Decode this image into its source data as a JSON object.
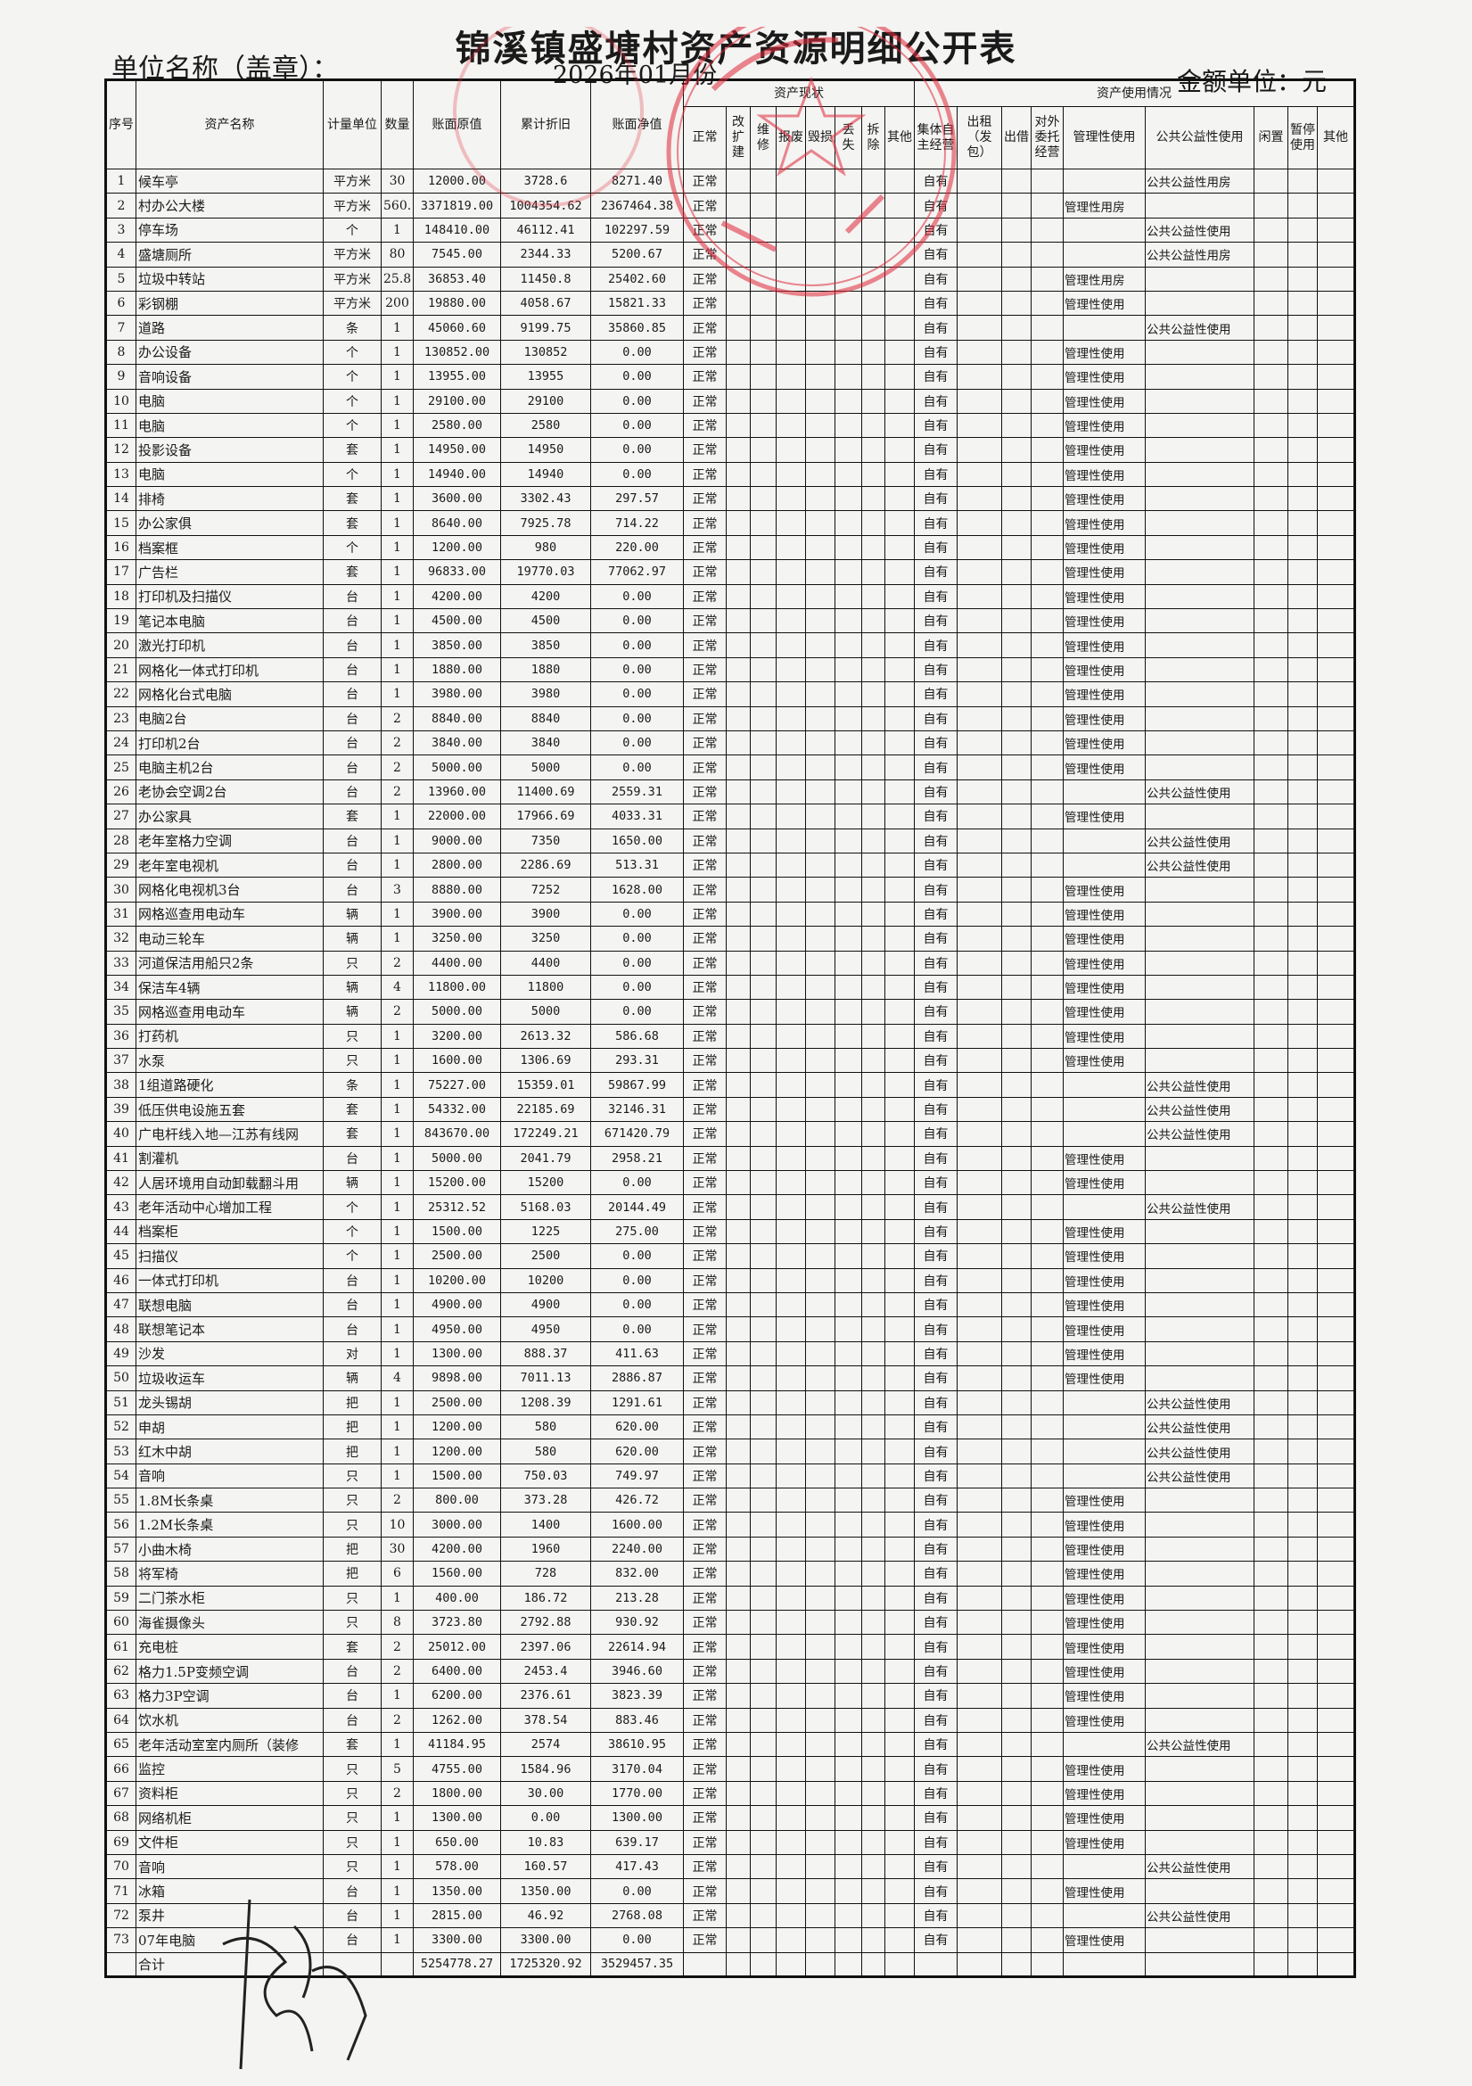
{
  "title": "锦溪镇盛塘村资产资源明细公开表",
  "unit_label": "单位名称（盖章）：",
  "period": "2026年01月份",
  "currency_label": "金额单位：元",
  "colors": {
    "stamp": "#e0283a",
    "ink": "#111111"
  },
  "headers": {
    "no": "序号",
    "name": "资产名称",
    "unit": "计量单位",
    "qty": "数量",
    "original": "账面原值",
    "depreciation": "累计折旧",
    "net": "账面净值",
    "status_group": "资产现状",
    "status": [
      "正常",
      "改扩建",
      "维修",
      "报废",
      "毁损",
      "丢失",
      "拆除",
      "其他"
    ],
    "usage_group": "资产使用情况",
    "usage": [
      "集体自主经营",
      "出租（发包）",
      "出借",
      "对外委托经营",
      "管理性使用",
      "公共公益性使用",
      "闲置",
      "暂停使用",
      "其他"
    ]
  },
  "rows": [
    [
      "1",
      "候车亭",
      "平方米",
      "30",
      "12000.00",
      "3728.6",
      "8271.40",
      "正常",
      "自有",
      "",
      "公共公益性用房"
    ],
    [
      "2",
      "村办公大楼",
      "平方米",
      "560.",
      "3371819.00",
      "1004354.62",
      "2367464.38",
      "正常",
      "自有",
      "管理性用房",
      ""
    ],
    [
      "3",
      "停车场",
      "个",
      "1",
      "148410.00",
      "46112.41",
      "102297.59",
      "正常",
      "自有",
      "",
      "公共公益性使用"
    ],
    [
      "4",
      "盛塘厕所",
      "平方米",
      "80",
      "7545.00",
      "2344.33",
      "5200.67",
      "正常",
      "自有",
      "",
      "公共公益性用房"
    ],
    [
      "5",
      "垃圾中转站",
      "平方米",
      "25.8",
      "36853.40",
      "11450.8",
      "25402.60",
      "正常",
      "自有",
      "管理性用房",
      ""
    ],
    [
      "6",
      "彩钢棚",
      "平方米",
      "200",
      "19880.00",
      "4058.67",
      "15821.33",
      "正常",
      "自有",
      "管理性使用",
      ""
    ],
    [
      "7",
      "道路",
      "条",
      "1",
      "45060.60",
      "9199.75",
      "35860.85",
      "正常",
      "自有",
      "",
      "公共公益性使用"
    ],
    [
      "8",
      "办公设备",
      "个",
      "1",
      "130852.00",
      "130852",
      "0.00",
      "正常",
      "自有",
      "管理性使用",
      ""
    ],
    [
      "9",
      "音响设备",
      "个",
      "1",
      "13955.00",
      "13955",
      "0.00",
      "正常",
      "自有",
      "管理性使用",
      ""
    ],
    [
      "10",
      "电脑",
      "个",
      "1",
      "29100.00",
      "29100",
      "0.00",
      "正常",
      "自有",
      "管理性使用",
      ""
    ],
    [
      "11",
      "电脑",
      "个",
      "1",
      "2580.00",
      "2580",
      "0.00",
      "正常",
      "自有",
      "管理性使用",
      ""
    ],
    [
      "12",
      "投影设备",
      "套",
      "1",
      "14950.00",
      "14950",
      "0.00",
      "正常",
      "自有",
      "管理性使用",
      ""
    ],
    [
      "13",
      "电脑",
      "个",
      "1",
      "14940.00",
      "14940",
      "0.00",
      "正常",
      "自有",
      "管理性使用",
      ""
    ],
    [
      "14",
      "排椅",
      "套",
      "1",
      "3600.00",
      "3302.43",
      "297.57",
      "正常",
      "自有",
      "管理性使用",
      ""
    ],
    [
      "15",
      "办公家俱",
      "套",
      "1",
      "8640.00",
      "7925.78",
      "714.22",
      "正常",
      "自有",
      "管理性使用",
      ""
    ],
    [
      "16",
      "档案框",
      "个",
      "1",
      "1200.00",
      "980",
      "220.00",
      "正常",
      "自有",
      "管理性使用",
      ""
    ],
    [
      "17",
      "广告栏",
      "套",
      "1",
      "96833.00",
      "19770.03",
      "77062.97",
      "正常",
      "自有",
      "管理性使用",
      ""
    ],
    [
      "18",
      "打印机及扫描仪",
      "台",
      "1",
      "4200.00",
      "4200",
      "0.00",
      "正常",
      "自有",
      "管理性使用",
      ""
    ],
    [
      "19",
      "笔记本电脑",
      "台",
      "1",
      "4500.00",
      "4500",
      "0.00",
      "正常",
      "自有",
      "管理性使用",
      ""
    ],
    [
      "20",
      "激光打印机",
      "台",
      "1",
      "3850.00",
      "3850",
      "0.00",
      "正常",
      "自有",
      "管理性使用",
      ""
    ],
    [
      "21",
      "网格化一体式打印机",
      "台",
      "1",
      "1880.00",
      "1880",
      "0.00",
      "正常",
      "自有",
      "管理性使用",
      ""
    ],
    [
      "22",
      "网格化台式电脑",
      "台",
      "1",
      "3980.00",
      "3980",
      "0.00",
      "正常",
      "自有",
      "管理性使用",
      ""
    ],
    [
      "23",
      "电脑2台",
      "台",
      "2",
      "8840.00",
      "8840",
      "0.00",
      "正常",
      "自有",
      "管理性使用",
      ""
    ],
    [
      "24",
      "打印机2台",
      "台",
      "2",
      "3840.00",
      "3840",
      "0.00",
      "正常",
      "自有",
      "管理性使用",
      ""
    ],
    [
      "25",
      "电脑主机2台",
      "台",
      "2",
      "5000.00",
      "5000",
      "0.00",
      "正常",
      "自有",
      "管理性使用",
      ""
    ],
    [
      "26",
      "老协会空调2台",
      "台",
      "2",
      "13960.00",
      "11400.69",
      "2559.31",
      "正常",
      "自有",
      "",
      "公共公益性使用"
    ],
    [
      "27",
      "办公家具",
      "套",
      "1",
      "22000.00",
      "17966.69",
      "4033.31",
      "正常",
      "自有",
      "管理性使用",
      ""
    ],
    [
      "28",
      "老年室格力空调",
      "台",
      "1",
      "9000.00",
      "7350",
      "1650.00",
      "正常",
      "自有",
      "",
      "公共公益性使用"
    ],
    [
      "29",
      "老年室电视机",
      "台",
      "1",
      "2800.00",
      "2286.69",
      "513.31",
      "正常",
      "自有",
      "",
      "公共公益性使用"
    ],
    [
      "30",
      "网格化电视机3台",
      "台",
      "3",
      "8880.00",
      "7252",
      "1628.00",
      "正常",
      "自有",
      "管理性使用",
      ""
    ],
    [
      "31",
      "网格巡查用电动车",
      "辆",
      "1",
      "3900.00",
      "3900",
      "0.00",
      "正常",
      "自有",
      "管理性使用",
      ""
    ],
    [
      "32",
      "电动三轮车",
      "辆",
      "1",
      "3250.00",
      "3250",
      "0.00",
      "正常",
      "自有",
      "管理性使用",
      ""
    ],
    [
      "33",
      "河道保洁用船只2条",
      "只",
      "2",
      "4400.00",
      "4400",
      "0.00",
      "正常",
      "自有",
      "管理性使用",
      ""
    ],
    [
      "34",
      "保洁车4辆",
      "辆",
      "4",
      "11800.00",
      "11800",
      "0.00",
      "正常",
      "自有",
      "管理性使用",
      ""
    ],
    [
      "35",
      "网格巡查用电动车",
      "辆",
      "2",
      "5000.00",
      "5000",
      "0.00",
      "正常",
      "自有",
      "管理性使用",
      ""
    ],
    [
      "36",
      "打药机",
      "只",
      "1",
      "3200.00",
      "2613.32",
      "586.68",
      "正常",
      "自有",
      "管理性使用",
      ""
    ],
    [
      "37",
      "水泵",
      "只",
      "1",
      "1600.00",
      "1306.69",
      "293.31",
      "正常",
      "自有",
      "管理性使用",
      ""
    ],
    [
      "38",
      "1组道路硬化",
      "条",
      "1",
      "75227.00",
      "15359.01",
      "59867.99",
      "正常",
      "自有",
      "",
      "公共公益性使用"
    ],
    [
      "39",
      "低压供电设施五套",
      "套",
      "1",
      "54332.00",
      "22185.69",
      "32146.31",
      "正常",
      "自有",
      "",
      "公共公益性使用"
    ],
    [
      "40",
      "广电杆线入地—江苏有线网",
      "套",
      "1",
      "843670.00",
      "172249.21",
      "671420.79",
      "正常",
      "自有",
      "",
      "公共公益性使用"
    ],
    [
      "41",
      "割灌机",
      "台",
      "1",
      "5000.00",
      "2041.79",
      "2958.21",
      "正常",
      "自有",
      "管理性使用",
      ""
    ],
    [
      "42",
      "人居环境用自动卸载翻斗用",
      "辆",
      "1",
      "15200.00",
      "15200",
      "0.00",
      "正常",
      "自有",
      "管理性使用",
      ""
    ],
    [
      "43",
      "老年活动中心增加工程",
      "个",
      "1",
      "25312.52",
      "5168.03",
      "20144.49",
      "正常",
      "自有",
      "",
      "公共公益性使用"
    ],
    [
      "44",
      "档案柜",
      "个",
      "1",
      "1500.00",
      "1225",
      "275.00",
      "正常",
      "自有",
      "管理性使用",
      ""
    ],
    [
      "45",
      "扫描仪",
      "个",
      "1",
      "2500.00",
      "2500",
      "0.00",
      "正常",
      "自有",
      "管理性使用",
      ""
    ],
    [
      "46",
      "一体式打印机",
      "台",
      "1",
      "10200.00",
      "10200",
      "0.00",
      "正常",
      "自有",
      "管理性使用",
      ""
    ],
    [
      "47",
      "联想电脑",
      "台",
      "1",
      "4900.00",
      "4900",
      "0.00",
      "正常",
      "自有",
      "管理性使用",
      ""
    ],
    [
      "48",
      "联想笔记本",
      "台",
      "1",
      "4950.00",
      "4950",
      "0.00",
      "正常",
      "自有",
      "管理性使用",
      ""
    ],
    [
      "49",
      "沙发",
      "对",
      "1",
      "1300.00",
      "888.37",
      "411.63",
      "正常",
      "自有",
      "管理性使用",
      ""
    ],
    [
      "50",
      "垃圾收运车",
      "辆",
      "4",
      "9898.00",
      "7011.13",
      "2886.87",
      "正常",
      "自有",
      "管理性使用",
      ""
    ],
    [
      "51",
      "龙头锡胡",
      "把",
      "1",
      "2500.00",
      "1208.39",
      "1291.61",
      "正常",
      "自有",
      "",
      "公共公益性使用"
    ],
    [
      "52",
      "申胡",
      "把",
      "1",
      "1200.00",
      "580",
      "620.00",
      "正常",
      "自有",
      "",
      "公共公益性使用"
    ],
    [
      "53",
      "红木中胡",
      "把",
      "1",
      "1200.00",
      "580",
      "620.00",
      "正常",
      "自有",
      "",
      "公共公益性使用"
    ],
    [
      "54",
      "音响",
      "只",
      "1",
      "1500.00",
      "750.03",
      "749.97",
      "正常",
      "自有",
      "",
      "公共公益性使用"
    ],
    [
      "55",
      "1.8M长条桌",
      "只",
      "2",
      "800.00",
      "373.28",
      "426.72",
      "正常",
      "自有",
      "管理性使用",
      ""
    ],
    [
      "56",
      "1.2M长条桌",
      "只",
      "10",
      "3000.00",
      "1400",
      "1600.00",
      "正常",
      "自有",
      "管理性使用",
      ""
    ],
    [
      "57",
      "小曲木椅",
      "把",
      "30",
      "4200.00",
      "1960",
      "2240.00",
      "正常",
      "自有",
      "管理性使用",
      ""
    ],
    [
      "58",
      "将军椅",
      "把",
      "6",
      "1560.00",
      "728",
      "832.00",
      "正常",
      "自有",
      "管理性使用",
      ""
    ],
    [
      "59",
      "二门茶水柜",
      "只",
      "1",
      "400.00",
      "186.72",
      "213.28",
      "正常",
      "自有",
      "管理性使用",
      ""
    ],
    [
      "60",
      "海雀摄像头",
      "只",
      "8",
      "3723.80",
      "2792.88",
      "930.92",
      "正常",
      "自有",
      "管理性使用",
      ""
    ],
    [
      "61",
      "充电桩",
      "套",
      "2",
      "25012.00",
      "2397.06",
      "22614.94",
      "正常",
      "自有",
      "管理性使用",
      ""
    ],
    [
      "62",
      "格力1.5P变频空调",
      "台",
      "2",
      "6400.00",
      "2453.4",
      "3946.60",
      "正常",
      "自有",
      "管理性使用",
      ""
    ],
    [
      "63",
      "格力3P空调",
      "台",
      "1",
      "6200.00",
      "2376.61",
      "3823.39",
      "正常",
      "自有",
      "管理性使用",
      ""
    ],
    [
      "64",
      "饮水机",
      "台",
      "2",
      "1262.00",
      "378.54",
      "883.46",
      "正常",
      "自有",
      "管理性使用",
      ""
    ],
    [
      "65",
      "老年活动室室内厕所（装修",
      "套",
      "1",
      "41184.95",
      "2574",
      "38610.95",
      "正常",
      "自有",
      "",
      "公共公益性使用"
    ],
    [
      "66",
      "监控",
      "只",
      "5",
      "4755.00",
      "1584.96",
      "3170.04",
      "正常",
      "自有",
      "管理性使用",
      ""
    ],
    [
      "67",
      "资料柜",
      "只",
      "2",
      "1800.00",
      "30.00",
      "1770.00",
      "正常",
      "自有",
      "管理性使用",
      ""
    ],
    [
      "68",
      "网络机柜",
      "只",
      "1",
      "1300.00",
      "0.00",
      "1300.00",
      "正常",
      "自有",
      "管理性使用",
      ""
    ],
    [
      "69",
      "文件柜",
      "只",
      "1",
      "650.00",
      "10.83",
      "639.17",
      "正常",
      "自有",
      "管理性使用",
      ""
    ],
    [
      "70",
      "音响",
      "只",
      "1",
      "578.00",
      "160.57",
      "417.43",
      "正常",
      "自有",
      "",
      "公共公益性使用"
    ],
    [
      "71",
      "冰箱",
      "台",
      "1",
      "1350.00",
      "1350.00",
      "0.00",
      "正常",
      "自有",
      "管理性使用",
      ""
    ],
    [
      "72",
      "泵井",
      "台",
      "1",
      "2815.00",
      "46.92",
      "2768.08",
      "正常",
      "自有",
      "",
      "公共公益性使用"
    ],
    [
      "73",
      "07年电脑",
      "台",
      "1",
      "3300.00",
      "3300.00",
      "0.00",
      "正常",
      "自有",
      "管理性使用",
      ""
    ]
  ],
  "total": {
    "label": "合计",
    "original": "5254778.27",
    "depreciation": "1725320.92",
    "net": "3529457.35"
  }
}
